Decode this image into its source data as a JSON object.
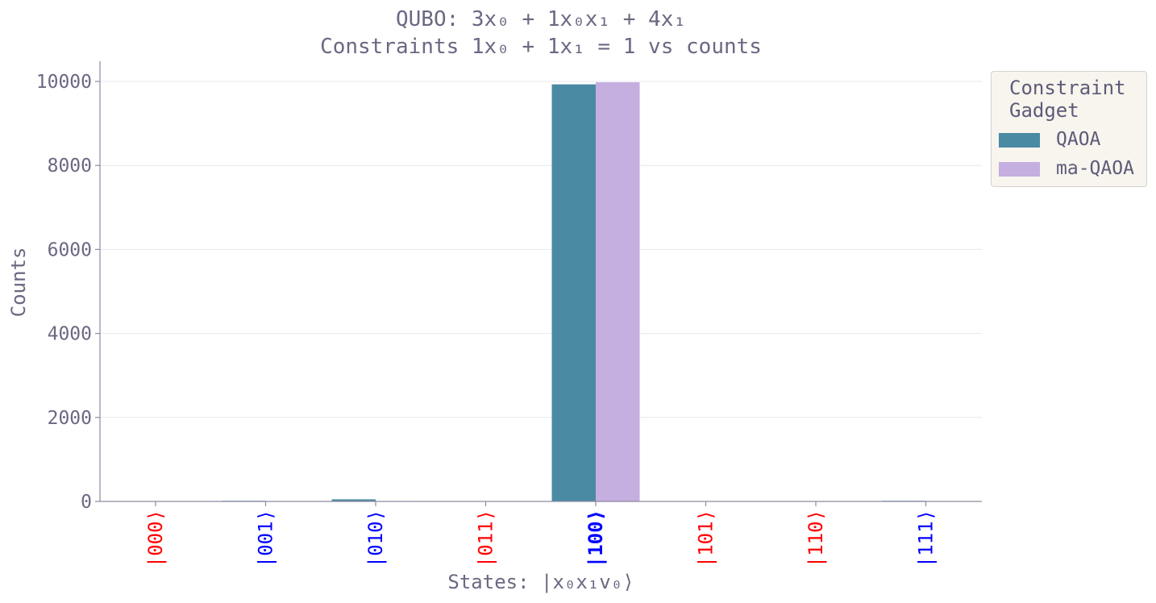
{
  "chart_data": {
    "type": "bar",
    "title_line1": "QUBO: 3x₀ + 1x₀x₁ + 4x₁",
    "title_line2": "Constraints 1x₀ + 1x₁ = 1 vs counts",
    "xlabel": "States: |x₀x₁v₀⟩",
    "ylabel": "Counts",
    "ylim": [
      0,
      10480
    ],
    "yticks": [
      0,
      2000,
      4000,
      6000,
      8000,
      10000
    ],
    "grid": "horizontal",
    "legend": {
      "title": "Constraint\nGadget",
      "placement": "outside-right-top"
    },
    "categories": [
      "|000⟩",
      "|001⟩",
      "|010⟩",
      "|011⟩",
      "|100⟩",
      "|101⟩",
      "|110⟩",
      "|111⟩"
    ],
    "category_colors": [
      "#ff0000",
      "#0000ff",
      "#0000ff",
      "#ff0000",
      "#0000ff",
      "#ff0000",
      "#ff0000",
      "#0000ff"
    ],
    "category_bold": [
      false,
      false,
      false,
      false,
      true,
      false,
      false,
      false
    ],
    "series": [
      {
        "name": "QAOA",
        "color": "#4a8aa3",
        "values": [
          0,
          15,
          50,
          0,
          9930,
          0,
          0,
          15
        ]
      },
      {
        "name": "ma-QAOA",
        "color": "#c5aee0",
        "values": [
          0,
          5,
          10,
          0,
          9980,
          0,
          0,
          0
        ]
      }
    ]
  }
}
